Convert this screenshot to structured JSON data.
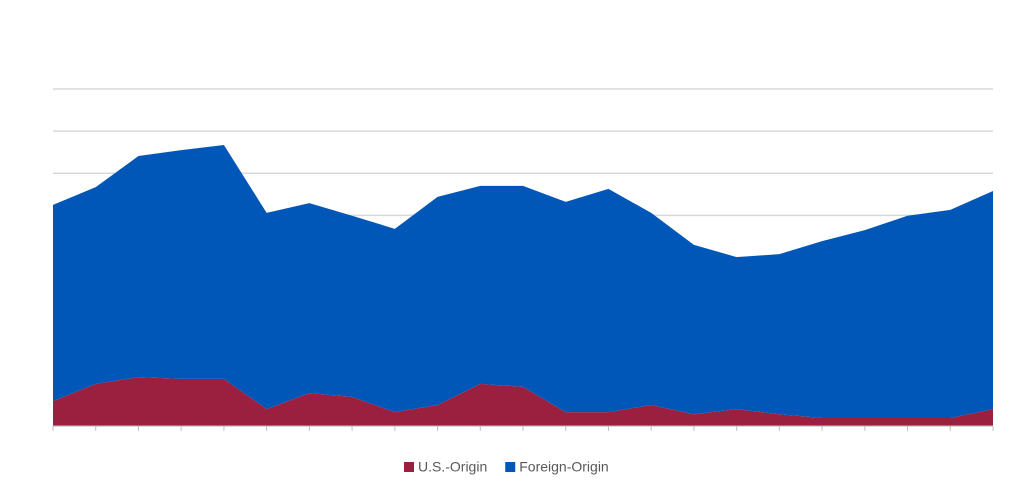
{
  "chart_data": {
    "type": "stacked-area",
    "categories": [
      null,
      null,
      null,
      null,
      null,
      null,
      null,
      null,
      null,
      null,
      null,
      null,
      null,
      null,
      null,
      null,
      null,
      null,
      null,
      null,
      null,
      null,
      null
    ],
    "series": [
      {
        "name": "U.S.-Origin",
        "color": "#9b1f3f",
        "values": [
          5.9,
          10.0,
          11.6,
          11.2,
          11.2,
          4.0,
          7.8,
          6.9,
          3.3,
          5.0,
          10.0,
          9.3,
          3.3,
          3.3,
          5.0,
          2.8,
          4.0,
          2.8,
          1.9,
          1.9,
          1.9,
          1.9,
          4.0
        ]
      },
      {
        "name": "Foreign-Origin",
        "color": "#0057b8",
        "values": [
          46.6,
          46.7,
          52.5,
          54.3,
          55.5,
          46.6,
          45.1,
          43.0,
          43.5,
          49.4,
          47.0,
          47.7,
          49.9,
          53.0,
          45.6,
          40.2,
          36.1,
          38.0,
          42.0,
          44.6,
          48.0,
          49.4,
          51.8
        ]
      }
    ],
    "ylim": [
      0,
      80
    ],
    "yticks": [
      0,
      10,
      20,
      30,
      40,
      50,
      60,
      70,
      80
    ],
    "grid": true,
    "legend": "bottom"
  }
}
